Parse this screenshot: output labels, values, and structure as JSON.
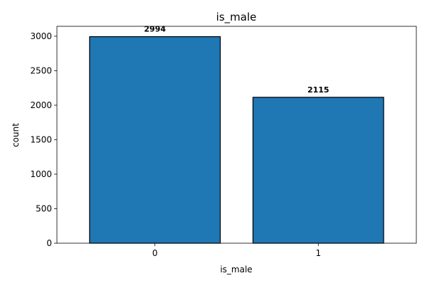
{
  "chart_data": {
    "type": "bar",
    "title": "is_male",
    "xlabel": "is_male",
    "ylabel": "count",
    "categories": [
      "0",
      "1"
    ],
    "values": [
      2994,
      2115
    ],
    "data_labels": [
      "2994",
      "2115"
    ],
    "yticks": [
      0,
      500,
      1000,
      1500,
      2000,
      2500,
      3000
    ],
    "ytick_labels": [
      "0",
      "500",
      "1000",
      "1500",
      "2000",
      "2500",
      "3000"
    ],
    "ylim": [
      0,
      3143.7
    ],
    "grid": false,
    "legend": "none",
    "colors": {
      "bar_fill": "#1f77b4",
      "bar_edge": "#000000",
      "axes": "#000000"
    }
  }
}
